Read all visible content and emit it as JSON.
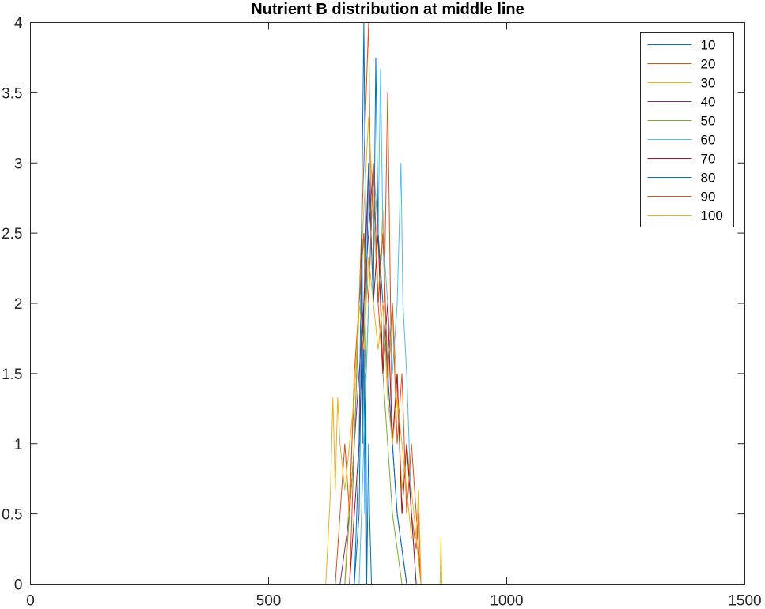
{
  "chart_data": {
    "type": "line",
    "title": "Nutrient B distribution at middle line",
    "xlabel": "",
    "ylabel": "",
    "xlim": [
      0,
      1500
    ],
    "ylim": [
      0,
      4
    ],
    "x_ticks": [
      0,
      500,
      1000,
      1500
    ],
    "y_ticks": [
      0,
      0.5,
      1,
      1.5,
      2,
      2.5,
      3,
      3.5,
      4
    ],
    "x_tick_labels": [
      "0",
      "500",
      "1000",
      "1500"
    ],
    "y_tick_labels": [
      "0",
      "0.5",
      "1",
      "1.5",
      "2",
      "2.5",
      "3",
      "3.5",
      "4"
    ],
    "grid": false,
    "legend_position": "top-right",
    "series": [
      {
        "name": "10",
        "color": "#0072BD",
        "points": [
          [
            0,
            0
          ],
          [
            680,
            0
          ],
          [
            690,
            0.5
          ],
          [
            694,
            1.5
          ],
          [
            696,
            2.75
          ],
          [
            698,
            1.0
          ],
          [
            700,
            2.0
          ],
          [
            702,
            0.5
          ],
          [
            704,
            1.5
          ],
          [
            706,
            0
          ],
          [
            710,
            1.0
          ],
          [
            712,
            0.5
          ],
          [
            716,
            0
          ],
          [
            1500,
            0
          ]
        ]
      },
      {
        "name": "20",
        "color": "#D95319",
        "points": [
          [
            0,
            0
          ],
          [
            670,
            0
          ],
          [
            680,
            1.0
          ],
          [
            690,
            2.0
          ],
          [
            700,
            3.0
          ],
          [
            705,
            3.5
          ],
          [
            710,
            4.0
          ],
          [
            715,
            2.5
          ],
          [
            720,
            3.0
          ],
          [
            730,
            2.0
          ],
          [
            740,
            1.5
          ],
          [
            750,
            3.5
          ],
          [
            760,
            1.0
          ],
          [
            770,
            1.5
          ],
          [
            780,
            0.5
          ],
          [
            790,
            1.0
          ],
          [
            800,
            0.5
          ],
          [
            810,
            0.25
          ],
          [
            815,
            0.5
          ],
          [
            820,
            0
          ],
          [
            1500,
            0
          ]
        ]
      },
      {
        "name": "30",
        "color": "#EDB120",
        "points": [
          [
            0,
            0
          ],
          [
            660,
            0
          ],
          [
            670,
            0.67
          ],
          [
            680,
            1.33
          ],
          [
            690,
            2.0
          ],
          [
            700,
            2.67
          ],
          [
            710,
            3.33
          ],
          [
            720,
            2.67
          ],
          [
            730,
            2.0
          ],
          [
            740,
            2.67
          ],
          [
            750,
            1.33
          ],
          [
            760,
            2.0
          ],
          [
            770,
            1.33
          ],
          [
            780,
            0.67
          ],
          [
            790,
            1.0
          ],
          [
            800,
            0.67
          ],
          [
            810,
            0.33
          ],
          [
            820,
            0
          ],
          [
            1500,
            0
          ]
        ]
      },
      {
        "name": "40",
        "color": "#7E2F8E",
        "points": [
          [
            0,
            0
          ],
          [
            650,
            0
          ],
          [
            660,
            0.25
          ],
          [
            670,
            0.5
          ],
          [
            680,
            1.0
          ],
          [
            690,
            1.5
          ],
          [
            700,
            2.0
          ],
          [
            710,
            2.5
          ],
          [
            720,
            3.0
          ],
          [
            730,
            2.0
          ],
          [
            740,
            2.5
          ],
          [
            750,
            1.5
          ],
          [
            760,
            1.0
          ],
          [
            770,
            0.5
          ],
          [
            780,
            0.25
          ],
          [
            790,
            0
          ],
          [
            1500,
            0
          ]
        ]
      },
      {
        "name": "50",
        "color": "#77AC30",
        "points": [
          [
            0,
            0
          ],
          [
            660,
            0
          ],
          [
            670,
            0.5
          ],
          [
            680,
            1.0
          ],
          [
            690,
            2.0
          ],
          [
            700,
            2.5
          ],
          [
            705,
            1.5
          ],
          [
            710,
            2.0
          ],
          [
            720,
            3.0
          ],
          [
            730,
            2.5
          ],
          [
            740,
            1.5
          ],
          [
            750,
            1.0
          ],
          [
            760,
            0.5
          ],
          [
            770,
            0.25
          ],
          [
            780,
            0
          ],
          [
            1500,
            0
          ]
        ]
      },
      {
        "name": "60",
        "color": "#4DBEEE",
        "points": [
          [
            0,
            0
          ],
          [
            690,
            0
          ],
          [
            700,
            1.0
          ],
          [
            710,
            2.0
          ],
          [
            720,
            3.0
          ],
          [
            730,
            2.5
          ],
          [
            735,
            3.67
          ],
          [
            740,
            2.5
          ],
          [
            750,
            2.0
          ],
          [
            760,
            1.5
          ],
          [
            770,
            2.0
          ],
          [
            778,
            3.0
          ],
          [
            782,
            2.0
          ],
          [
            790,
            1.5
          ],
          [
            800,
            0.5
          ],
          [
            810,
            0
          ],
          [
            1500,
            0
          ]
        ]
      },
      {
        "name": "70",
        "color": "#A2142F",
        "points": [
          [
            0,
            0
          ],
          [
            670,
            0
          ],
          [
            680,
            0.5
          ],
          [
            690,
            1.0
          ],
          [
            700,
            2.0
          ],
          [
            710,
            3.0
          ],
          [
            720,
            2.0
          ],
          [
            730,
            2.5
          ],
          [
            740,
            1.5
          ],
          [
            750,
            2.0
          ],
          [
            760,
            1.0
          ],
          [
            770,
            1.5
          ],
          [
            780,
            0.5
          ],
          [
            790,
            1.0
          ],
          [
            800,
            0.5
          ],
          [
            810,
            0
          ],
          [
            1500,
            0
          ]
        ]
      },
      {
        "name": "80",
        "color": "#0072BD",
        "points": [
          [
            0,
            0
          ],
          [
            680,
            0
          ],
          [
            690,
            1.0
          ],
          [
            700,
            4.0
          ],
          [
            705,
            2.0
          ],
          [
            710,
            3.0
          ],
          [
            720,
            2.0
          ],
          [
            725,
            3.75
          ],
          [
            730,
            2.5
          ],
          [
            740,
            2.0
          ],
          [
            750,
            1.5
          ],
          [
            760,
            1.0
          ],
          [
            770,
            0.5
          ],
          [
            780,
            0.25
          ],
          [
            790,
            0
          ],
          [
            1500,
            0
          ]
        ]
      },
      {
        "name": "90",
        "color": "#D95319",
        "points": [
          [
            0,
            0
          ],
          [
            640,
            0
          ],
          [
            650,
            0.5
          ],
          [
            660,
            1.0
          ],
          [
            670,
            0.5
          ],
          [
            680,
            1.5
          ],
          [
            690,
            2.0
          ],
          [
            700,
            2.5
          ],
          [
            710,
            2.0
          ],
          [
            720,
            3.0
          ],
          [
            730,
            2.0
          ],
          [
            740,
            2.5
          ],
          [
            750,
            1.5
          ],
          [
            760,
            2.0
          ],
          [
            770,
            1.0
          ],
          [
            780,
            1.5
          ],
          [
            790,
            0.5
          ],
          [
            800,
            1.0
          ],
          [
            810,
            0.5
          ],
          [
            820,
            0
          ],
          [
            1500,
            0
          ]
        ]
      },
      {
        "name": "100",
        "color": "#EDB120",
        "points": [
          [
            0,
            0
          ],
          [
            620,
            0
          ],
          [
            625,
            0.33
          ],
          [
            630,
            0.67
          ],
          [
            635,
            1.33
          ],
          [
            640,
            0.67
          ],
          [
            645,
            1.33
          ],
          [
            650,
            1.0
          ],
          [
            660,
            0.67
          ],
          [
            670,
            1.0
          ],
          [
            680,
            1.33
          ],
          [
            690,
            2.0
          ],
          [
            700,
            1.67
          ],
          [
            710,
            2.33
          ],
          [
            720,
            2.0
          ],
          [
            730,
            1.67
          ],
          [
            740,
            2.0
          ],
          [
            750,
            1.33
          ],
          [
            760,
            1.0
          ],
          [
            770,
            1.33
          ],
          [
            780,
            1.0
          ],
          [
            790,
            0.67
          ],
          [
            800,
            0.33
          ],
          [
            810,
            0.33
          ],
          [
            815,
            0.67
          ],
          [
            820,
            0
          ],
          [
            860,
            0
          ],
          [
            862,
            0.33
          ],
          [
            864,
            0
          ],
          [
            1500,
            0
          ]
        ]
      }
    ]
  }
}
